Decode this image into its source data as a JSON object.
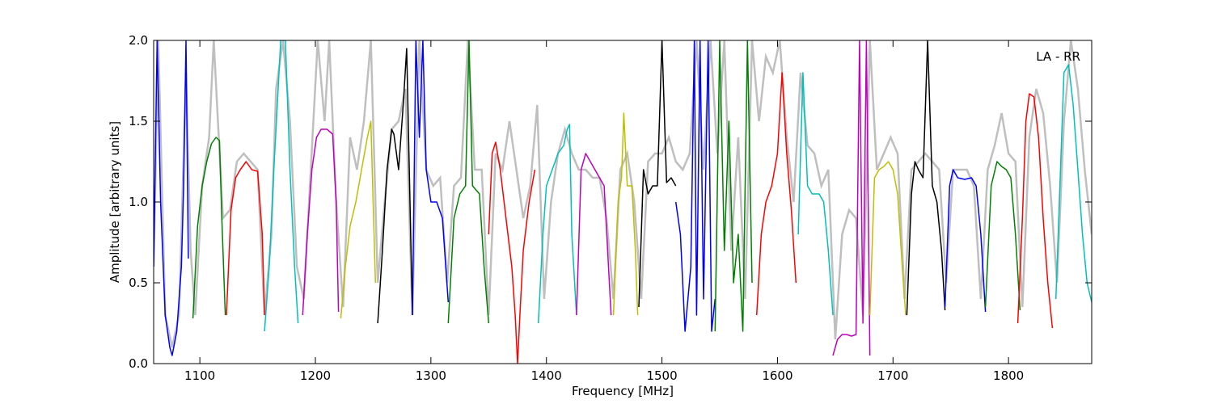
{
  "chart_data": {
    "type": "line",
    "title": "",
    "annotation": "LA - RR",
    "xlabel": "Frequency [MHz]",
    "ylabel": "Amplitude [arbitrary units]",
    "xlim": [
      1060,
      1872
    ],
    "ylim": [
      0.0,
      2.0
    ],
    "xticks": [
      1100,
      1200,
      1300,
      1400,
      1500,
      1600,
      1700,
      1800
    ],
    "yticks": [
      0.0,
      0.5,
      1.0,
      1.5,
      2.0
    ],
    "xtick_labels": [
      "1100",
      "1200",
      "1300",
      "1400",
      "1500",
      "1600",
      "1700",
      "1800"
    ],
    "ytick_labels": [
      "0.0",
      "0.5",
      "1.0",
      "1.5",
      "2.0"
    ],
    "grid": false,
    "background_trace_color": "#bfbfbf",
    "series": [
      {
        "color": "#0000ff",
        "x": [
          1060,
          1063,
          1066,
          1070,
          1074,
          1076,
          1080,
          1084,
          1086,
          1088,
          1090
        ],
        "y": [
          0.6,
          2.0,
          1.0,
          0.3,
          0.1,
          0.05,
          0.2,
          0.6,
          1.1,
          2.0,
          0.65
        ]
      },
      {
        "color": "#008000",
        "x": [
          1094,
          1098,
          1102,
          1106,
          1110,
          1114,
          1117,
          1119,
          1122
        ],
        "y": [
          0.28,
          0.85,
          1.1,
          1.25,
          1.36,
          1.4,
          1.38,
          0.9,
          0.3
        ]
      },
      {
        "color": "#ff0000",
        "x": [
          1123,
          1127,
          1131,
          1135,
          1140,
          1145,
          1150,
          1154,
          1156
        ],
        "y": [
          0.3,
          0.95,
          1.15,
          1.2,
          1.25,
          1.2,
          1.19,
          0.8,
          0.3
        ]
      },
      {
        "color": "#00bfbf",
        "x": [
          1156,
          1160,
          1164,
          1167,
          1170,
          1174,
          1178,
          1182,
          1185
        ],
        "y": [
          0.2,
          0.6,
          1.2,
          1.6,
          2.0,
          2.0,
          1.2,
          0.6,
          0.25
        ]
      },
      {
        "color": "#bf00bf",
        "x": [
          1189,
          1193,
          1197,
          1201,
          1205,
          1210,
          1215,
          1218,
          1220
        ],
        "y": [
          0.3,
          0.8,
          1.2,
          1.4,
          1.45,
          1.45,
          1.42,
          1.0,
          0.32
        ]
      },
      {
        "color": "#bfbf00",
        "x": [
          1222,
          1226,
          1230,
          1235,
          1240,
          1245,
          1248,
          1250,
          1252
        ],
        "y": [
          0.28,
          0.6,
          0.85,
          1.0,
          1.2,
          1.4,
          1.5,
          1.0,
          0.5
        ]
      },
      {
        "color": "#000000",
        "x": [
          1254,
          1258,
          1262,
          1266,
          1268,
          1272,
          1276,
          1279,
          1281,
          1284
        ],
        "y": [
          0.25,
          0.7,
          1.2,
          1.45,
          1.42,
          1.2,
          1.6,
          1.95,
          1.3,
          0.3
        ]
      },
      {
        "color": "#0000ff",
        "x": [
          1284,
          1287,
          1290,
          1293,
          1296,
          1300,
          1305,
          1310,
          1315
        ],
        "y": [
          0.3,
          2.0,
          1.4,
          2.0,
          1.2,
          1.0,
          1.0,
          0.9,
          0.38
        ]
      },
      {
        "color": "#008000",
        "x": [
          1315,
          1320,
          1325,
          1330,
          1333,
          1336,
          1342,
          1346,
          1350
        ],
        "y": [
          0.25,
          0.9,
          1.05,
          1.1,
          2.0,
          1.1,
          1.05,
          0.6,
          0.25
        ]
      },
      {
        "color": "#ff0000",
        "x": [
          1350,
          1353,
          1356,
          1360,
          1365,
          1370,
          1373,
          1375,
          1377,
          1380,
          1385,
          1390
        ],
        "y": [
          0.8,
          1.3,
          1.37,
          1.2,
          0.9,
          0.6,
          0.3,
          0.0,
          0.3,
          0.7,
          1.0,
          1.2
        ]
      },
      {
        "color": "#00bfbf",
        "x": [
          1393,
          1397,
          1400,
          1405,
          1410,
          1415,
          1418,
          1420,
          1422,
          1426
        ],
        "y": [
          0.25,
          0.8,
          1.1,
          1.2,
          1.3,
          1.35,
          1.45,
          1.48,
          0.8,
          0.3
        ]
      },
      {
        "color": "#bf00bf",
        "x": [
          1426,
          1430,
          1434,
          1438,
          1442,
          1446,
          1450,
          1453,
          1456
        ],
        "y": [
          0.3,
          1.2,
          1.3,
          1.25,
          1.2,
          1.15,
          1.1,
          0.7,
          0.3
        ]
      },
      {
        "color": "#bfbf00",
        "x": [
          1458,
          1462,
          1465,
          1467,
          1470,
          1474,
          1477,
          1479
        ],
        "y": [
          0.3,
          1.0,
          1.15,
          1.55,
          1.1,
          1.1,
          0.7,
          0.3
        ]
      },
      {
        "color": "#000000",
        "x": [
          1480,
          1484,
          1488,
          1492,
          1496,
          1500,
          1504,
          1508,
          1512
        ],
        "y": [
          0.35,
          1.2,
          1.05,
          1.1,
          1.1,
          2.0,
          1.12,
          1.15,
          1.1
        ]
      },
      {
        "color": "#0000ff",
        "x": [
          1512,
          1516,
          1520,
          1525,
          1528,
          1530,
          1533,
          1536,
          1540,
          1543,
          1546
        ],
        "y": [
          1.0,
          0.8,
          0.2,
          0.6,
          2.0,
          0.3,
          2.0,
          0.4,
          2.0,
          0.2,
          0.4
        ]
      },
      {
        "color": "#008000",
        "x": [
          1546,
          1550,
          1554,
          1558,
          1562,
          1566,
          1570,
          1574,
          1578
        ],
        "y": [
          0.2,
          2.0,
          0.7,
          1.5,
          0.5,
          0.8,
          0.2,
          2.0,
          0.5
        ]
      },
      {
        "color": "#ff0000",
        "x": [
          1582,
          1586,
          1590,
          1595,
          1600,
          1604,
          1608,
          1612,
          1616
        ],
        "y": [
          0.3,
          0.8,
          1.0,
          1.1,
          1.3,
          1.8,
          1.3,
          0.95,
          0.5
        ]
      },
      {
        "color": "#00bfbf",
        "x": [
          1618,
          1622,
          1626,
          1630,
          1636,
          1640,
          1644,
          1648
        ],
        "y": [
          0.8,
          1.8,
          1.1,
          1.05,
          1.05,
          1.0,
          0.7,
          0.3
        ]
      },
      {
        "color": "#bf00bf",
        "x": [
          1648,
          1652,
          1656,
          1660,
          1664,
          1668,
          1671,
          1674,
          1677,
          1680
        ],
        "y": [
          0.05,
          0.15,
          0.18,
          0.18,
          0.17,
          0.18,
          2.0,
          0.25,
          2.0,
          0.05
        ]
      },
      {
        "color": "#bfbf00",
        "x": [
          1680,
          1684,
          1688,
          1692,
          1696,
          1700,
          1704,
          1708,
          1711
        ],
        "y": [
          0.3,
          1.15,
          1.2,
          1.22,
          1.25,
          1.2,
          1.05,
          0.6,
          0.3
        ]
      },
      {
        "color": "#000000",
        "x": [
          1712,
          1716,
          1719,
          1722,
          1726,
          1730,
          1734,
          1738,
          1742,
          1745
        ],
        "y": [
          0.3,
          1.05,
          1.25,
          1.2,
          1.15,
          2.0,
          1.1,
          1.0,
          0.7,
          0.33
        ]
      },
      {
        "color": "#0000ff",
        "x": [
          1745,
          1749,
          1752,
          1756,
          1762,
          1768,
          1772,
          1776,
          1780
        ],
        "y": [
          0.35,
          1.1,
          1.2,
          1.15,
          1.14,
          1.15,
          1.1,
          0.8,
          0.32
        ]
      },
      {
        "color": "#008000",
        "x": [
          1780,
          1785,
          1790,
          1794,
          1798,
          1802,
          1806,
          1810
        ],
        "y": [
          0.35,
          1.1,
          1.25,
          1.22,
          1.2,
          1.15,
          0.8,
          0.33
        ]
      },
      {
        "color": "#ff0000",
        "x": [
          1808,
          1812,
          1815,
          1818,
          1822,
          1826,
          1830,
          1834,
          1838
        ],
        "y": [
          0.25,
          0.9,
          1.5,
          1.67,
          1.65,
          1.4,
          0.9,
          0.5,
          0.22
        ]
      },
      {
        "color": "#00bfbf",
        "x": [
          1841,
          1845,
          1848,
          1852,
          1856,
          1860,
          1864,
          1868,
          1872
        ],
        "y": [
          0.4,
          1.2,
          1.8,
          1.85,
          1.6,
          1.2,
          0.8,
          0.5,
          0.38
        ]
      }
    ],
    "background_trace": {
      "x": [
        1060,
        1064,
        1070,
        1076,
        1082,
        1088,
        1092,
        1096,
        1102,
        1108,
        1112,
        1116,
        1120,
        1126,
        1132,
        1138,
        1144,
        1150,
        1156,
        1162,
        1166,
        1172,
        1178,
        1184,
        1190,
        1196,
        1202,
        1208,
        1212,
        1218,
        1224,
        1230,
        1236,
        1242,
        1248,
        1254,
        1260,
        1266,
        1272,
        1278,
        1284,
        1290,
        1296,
        1302,
        1308,
        1314,
        1320,
        1326,
        1332,
        1338,
        1344,
        1350,
        1356,
        1362,
        1368,
        1374,
        1380,
        1386,
        1392,
        1398,
        1404,
        1410,
        1416,
        1422,
        1428,
        1434,
        1440,
        1446,
        1452,
        1458,
        1464,
        1470,
        1476,
        1482,
        1488,
        1494,
        1500,
        1506,
        1512,
        1518,
        1524,
        1530,
        1536,
        1542,
        1548,
        1554,
        1560,
        1566,
        1572,
        1578,
        1584,
        1590,
        1596,
        1602,
        1608,
        1614,
        1620,
        1626,
        1632,
        1638,
        1644,
        1650,
        1656,
        1662,
        1668,
        1674,
        1680,
        1686,
        1692,
        1698,
        1704,
        1710,
        1716,
        1722,
        1728,
        1734,
        1740,
        1746,
        1752,
        1758,
        1764,
        1770,
        1776,
        1782,
        1788,
        1794,
        1800,
        1806,
        1812,
        1818,
        1824,
        1830,
        1836,
        1842,
        1848,
        1854,
        1860,
        1866,
        1872
      ],
      "y": [
        0.6,
        2.0,
        0.3,
        0.1,
        0.3,
        1.8,
        0.7,
        0.3,
        1.1,
        1.4,
        2.0,
        1.45,
        0.9,
        0.95,
        1.25,
        1.3,
        1.25,
        1.2,
        0.3,
        0.8,
        1.7,
        2.0,
        1.5,
        0.6,
        0.4,
        1.2,
        2.0,
        1.5,
        2.0,
        1.0,
        0.35,
        1.4,
        1.2,
        1.5,
        2.0,
        0.5,
        1.0,
        1.45,
        1.5,
        1.7,
        0.3,
        2.0,
        1.2,
        1.1,
        1.15,
        0.5,
        1.1,
        1.15,
        2.0,
        1.2,
        1.2,
        0.3,
        1.3,
        1.2,
        1.5,
        1.2,
        0.9,
        1.1,
        1.6,
        0.4,
        1.0,
        1.3,
        1.45,
        1.3,
        1.2,
        1.2,
        1.15,
        1.15,
        0.9,
        0.4,
        1.2,
        1.3,
        1.0,
        0.4,
        1.25,
        1.3,
        1.3,
        1.4,
        1.25,
        1.2,
        1.3,
        2.0,
        1.2,
        2.0,
        1.3,
        2.0,
        0.7,
        1.4,
        0.4,
        2.0,
        1.5,
        1.9,
        1.8,
        2.0,
        1.4,
        1.0,
        1.8,
        1.35,
        1.3,
        1.1,
        1.2,
        0.15,
        0.8,
        0.95,
        0.9,
        0.3,
        2.0,
        1.2,
        1.3,
        1.4,
        1.3,
        0.4,
        1.2,
        1.25,
        1.3,
        1.25,
        1.2,
        0.5,
        1.2,
        1.2,
        1.2,
        1.1,
        0.4,
        1.2,
        1.35,
        1.55,
        1.3,
        1.25,
        0.35,
        1.4,
        1.7,
        1.55,
        1.1,
        0.5,
        1.5,
        2.0,
        1.7,
        1.2,
        0.8
      ]
    }
  }
}
